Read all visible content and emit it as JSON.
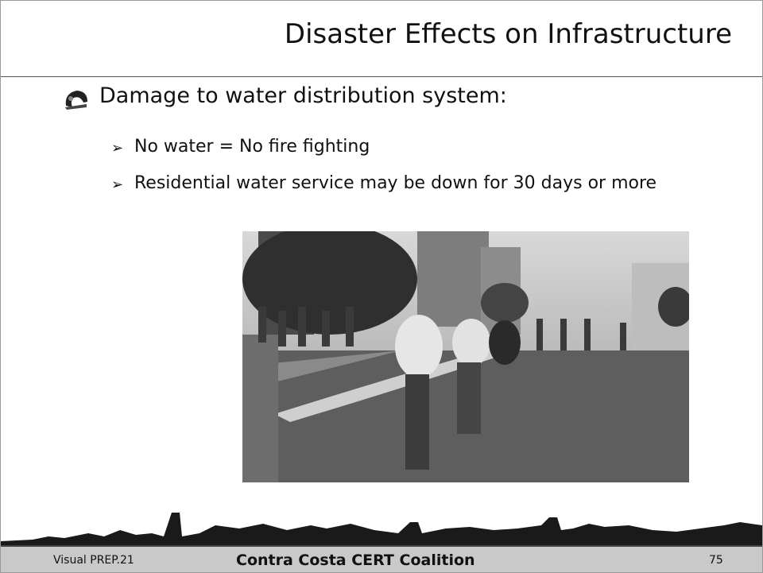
{
  "header": {
    "title": "Disaster Effects on Infrastructure"
  },
  "bullets": [
    {
      "text": "Damage to water distribution system:",
      "sub": [
        "No water = No fire fighting",
        "Residential water service may be down for 30 days or more"
      ]
    }
  ],
  "footer": {
    "left": "Visual PREP.21",
    "center": "Contra Costa CERT Coalition",
    "page": "75"
  }
}
